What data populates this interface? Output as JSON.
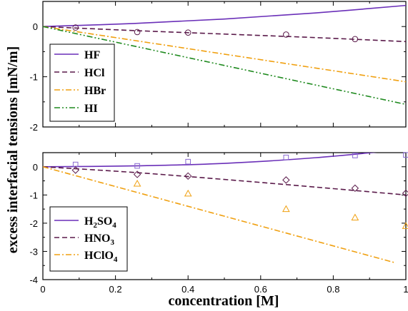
{
  "chart_data": [
    {
      "type": "line",
      "ylabel": "excess interfacial tensions [mN/m]",
      "xlabel": "",
      "xlim": [
        0,
        1
      ],
      "ylim": [
        -2,
        0.5
      ],
      "yticks": [
        "-2",
        "-1",
        "0"
      ],
      "yticks_values": [
        -2,
        -1,
        0
      ],
      "xticks_shown": false,
      "legend_position": "left",
      "series": [
        {
          "name": "HF",
          "color": "#6a2fb8",
          "dash": "solid",
          "x": [
            0,
            0.25,
            0.5,
            0.75,
            1.0
          ],
          "y": [
            0,
            0.06,
            0.15,
            0.27,
            0.42
          ]
        },
        {
          "name": "HCl",
          "color": "#5a1a4a",
          "dash": "dashed",
          "x": [
            0,
            0.25,
            0.5,
            0.75,
            1.0
          ],
          "y": [
            0,
            -0.08,
            -0.15,
            -0.22,
            -0.3
          ]
        },
        {
          "name": "HBr",
          "color": "#f0a010",
          "dash": "dashdot",
          "x": [
            0,
            1.0
          ],
          "y": [
            0,
            -1.1
          ]
        },
        {
          "name": "HI",
          "color": "#1f8a1f",
          "dash": "dashdotdot",
          "x": [
            0,
            1.0
          ],
          "y": [
            0,
            -1.55
          ]
        }
      ],
      "markers": [
        {
          "series": "HCl",
          "shape": "circle",
          "color": "#5a1a4a",
          "x": [
            0.09,
            0.26,
            0.4,
            0.67,
            0.86
          ],
          "y": [
            -0.02,
            -0.11,
            -0.12,
            -0.16,
            -0.25
          ]
        }
      ]
    },
    {
      "type": "line",
      "ylabel": "",
      "xlabel": "concentration [M]",
      "xlim": [
        0,
        1
      ],
      "ylim": [
        -4,
        0.5
      ],
      "yticks": [
        "-4",
        "-3",
        "-2",
        "-1",
        "0"
      ],
      "yticks_values": [
        -4,
        -3,
        -2,
        -1,
        0
      ],
      "xticks": [
        "0",
        "0.2",
        "0.4",
        "0.6",
        "0.8",
        "1"
      ],
      "xticks_values": [
        0,
        0.2,
        0.4,
        0.6,
        0.8,
        1
      ],
      "legend_position": "bottom-left",
      "series": [
        {
          "name": "H2SO4",
          "label_main": "H",
          "label_sub1": "2",
          "label_mid": "SO",
          "label_sub2": "4",
          "color": "#6a2fb8",
          "dash": "solid",
          "x": [
            0,
            0.25,
            0.5,
            0.75,
            1.0
          ],
          "y": [
            0,
            0.03,
            0.12,
            0.32,
            0.62
          ]
        },
        {
          "name": "HNO3",
          "label_main": "HNO",
          "label_sub1": "3",
          "label_mid": "",
          "label_sub2": "",
          "color": "#5a1a4a",
          "dash": "dashed",
          "x": [
            0,
            0.25,
            0.5,
            0.75,
            1.0
          ],
          "y": [
            0,
            -0.2,
            -0.45,
            -0.72,
            -1.0
          ]
        },
        {
          "name": "HClO4",
          "label_main": "HClO",
          "label_sub1": "4",
          "label_mid": "",
          "label_sub2": "",
          "color": "#f0a010",
          "dash": "dashdot",
          "x": [
            0,
            0.97
          ],
          "y": [
            0,
            -3.4
          ]
        }
      ],
      "markers": [
        {
          "series": "H2SO4",
          "shape": "square",
          "color": "#8a6ad0",
          "x": [
            0.09,
            0.26,
            0.4,
            0.67,
            0.86,
            1.0
          ],
          "y": [
            0.08,
            0.03,
            0.18,
            0.33,
            0.4,
            0.42
          ]
        },
        {
          "series": "HNO3",
          "shape": "diamond",
          "color": "#5a1a4a",
          "x": [
            0.09,
            0.26,
            0.4,
            0.67,
            0.86,
            1.0
          ],
          "y": [
            -0.12,
            -0.27,
            -0.33,
            -0.47,
            -0.76,
            -0.94
          ]
        },
        {
          "series": "HClO4",
          "shape": "triangle",
          "color": "#f0a010",
          "x": [
            0.26,
            0.4,
            0.67,
            0.86,
            1.0
          ],
          "y": [
            -0.6,
            -0.95,
            -1.5,
            -1.8,
            -2.1
          ]
        }
      ]
    }
  ]
}
